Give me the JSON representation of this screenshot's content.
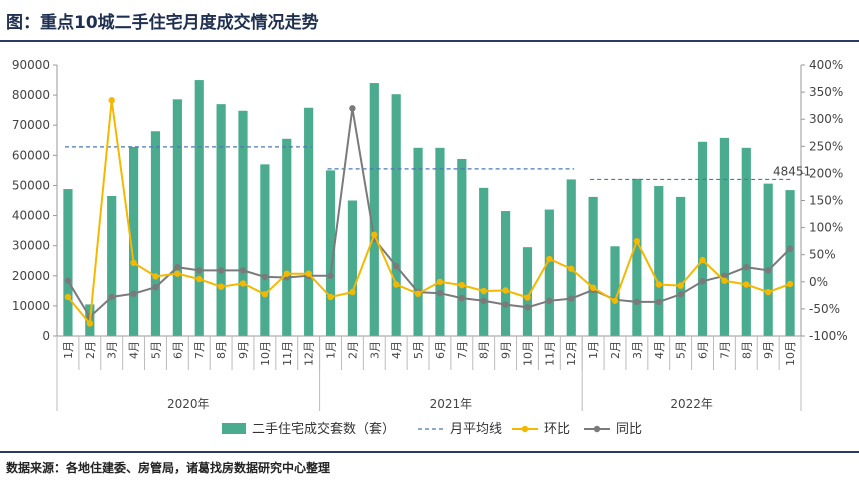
{
  "header": {
    "title": "图：重点10城二手住宅月度成交情况走势"
  },
  "footer": {
    "source": "数据来源：各地住建委、房管局，诸葛找房数据研究中心整理"
  },
  "colors": {
    "bar": "#4aab8f",
    "avg": "#4a78b5",
    "mom": "#f5b800",
    "yoy": "#7a7a7a",
    "title": "#1f2f4f"
  },
  "chart_data": {
    "type": "bar",
    "categories": [
      "1月",
      "2月",
      "3月",
      "4月",
      "5月",
      "6月",
      "7月",
      "8月",
      "9月",
      "10月",
      "11月",
      "12月",
      "1月",
      "2月",
      "3月",
      "4月",
      "5月",
      "6月",
      "7月",
      "8月",
      "9月",
      "10月",
      "11月",
      "12月",
      "1月",
      "2月",
      "3月",
      "4月",
      "5月",
      "6月",
      "7月",
      "8月",
      "9月",
      "10月"
    ],
    "years": [
      {
        "label": "2020年",
        "start": 0,
        "end": 12
      },
      {
        "label": "2021年",
        "start": 12,
        "end": 24
      },
      {
        "label": "2022年",
        "start": 24,
        "end": 34
      }
    ],
    "series": [
      {
        "name": "二手住宅成交套数（套）",
        "type": "bar",
        "axis": "left",
        "values": [
          48800,
          10500,
          46500,
          62800,
          68000,
          78600,
          85000,
          77000,
          74800,
          57000,
          65500,
          75800,
          55000,
          45000,
          84000,
          80300,
          62500,
          62500,
          58800,
          49200,
          41500,
          29500,
          42000,
          52000,
          46200,
          29800,
          52200,
          49800,
          46200,
          64500,
          65800,
          62500,
          50600,
          48451
        ]
      },
      {
        "name": "月平均线",
        "type": "line-dashed",
        "axis": "left",
        "segments": [
          {
            "start": 0,
            "end": 12,
            "value": 62800
          },
          {
            "start": 12,
            "end": 24,
            "value": 55500
          },
          {
            "start": 24,
            "end": 34,
            "value": 52000
          }
        ]
      },
      {
        "name": "环比",
        "type": "line",
        "axis": "right",
        "values": [
          -28,
          -77,
          335,
          35,
          10,
          15,
          5,
          -9,
          -3,
          -23,
          15,
          15,
          -28,
          -19,
          87,
          -5,
          -22,
          0,
          -6,
          -17,
          -16,
          -29,
          42,
          24,
          -11,
          -35,
          75,
          -5,
          -7,
          40,
          2,
          -5,
          -19,
          -4
        ]
      },
      {
        "name": "同比",
        "type": "line",
        "axis": "right",
        "values": [
          2,
          -65,
          -28,
          -22,
          -10,
          27,
          21,
          21,
          21,
          9,
          8,
          11,
          11,
          320,
          79,
          29,
          -19,
          -21,
          -30,
          -35,
          -42,
          -47,
          -35,
          -31,
          -15,
          -33,
          -37,
          -37,
          -23,
          1,
          11,
          27,
          21,
          61
        ]
      }
    ],
    "annotations": [
      {
        "text": "48451",
        "index": 33
      }
    ],
    "yaxis_left": {
      "min": 0,
      "max": 90000,
      "ticks": [
        "0",
        "10000",
        "20000",
        "30000",
        "40000",
        "50000",
        "60000",
        "70000",
        "80000",
        "90000"
      ]
    },
    "yaxis_right": {
      "min": -100,
      "max": 400,
      "ticks": [
        "-100%",
        "-50%",
        "0%",
        "50%",
        "100%",
        "150%",
        "200%",
        "250%",
        "300%",
        "350%",
        "400%"
      ]
    },
    "legend": {
      "position": "bottom",
      "items": [
        "二手住宅成交套数（套）",
        "月平均线",
        "环比",
        "同比"
      ]
    },
    "grid": false
  }
}
